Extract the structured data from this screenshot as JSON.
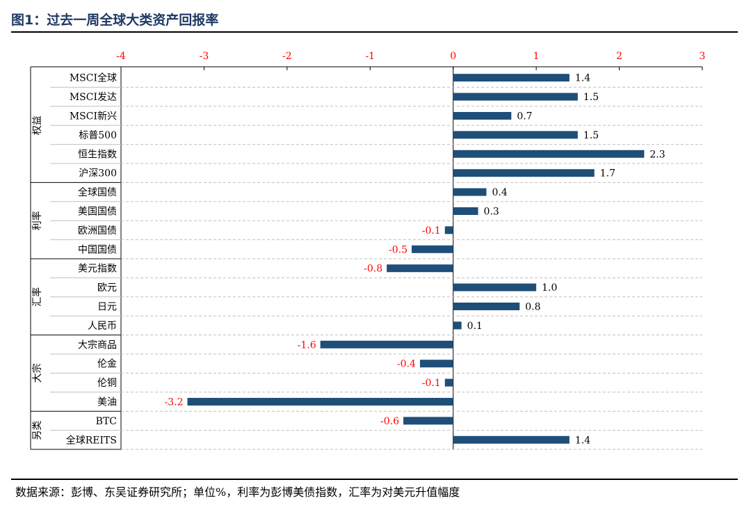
{
  "title": "图1：过去一周全球大类资产回报率",
  "source": "数据来源：彭博、东吴证券研究所；单位%，利率为彭博美债指数，汇率为对美元升值幅度",
  "colors": {
    "bar": "#1f4e79",
    "negative_label": "#ff0000",
    "positive_label": "#000000",
    "tick": "#ff0000"
  },
  "chart_data": {
    "type": "bar",
    "orientation": "horizontal",
    "xlim": [
      -4,
      3
    ],
    "xticks": [
      -4,
      -3,
      -2,
      -1,
      0,
      1,
      2,
      3
    ],
    "grid": true,
    "groups": [
      {
        "name": "权益",
        "categories": [
          "MSCI全球",
          "MSCI发达",
          "MSCI新兴",
          "标普500",
          "恒生指数",
          "沪深300"
        ],
        "values": [
          1.4,
          1.5,
          0.7,
          1.5,
          2.3,
          1.7
        ]
      },
      {
        "name": "利率",
        "categories": [
          "全球国债",
          "美国国债",
          "欧洲国债",
          "中国国债"
        ],
        "values": [
          0.4,
          0.3,
          -0.1,
          -0.5
        ]
      },
      {
        "name": "汇率",
        "categories": [
          "美元指数",
          "欧元",
          "日元",
          "人民币"
        ],
        "values": [
          -0.8,
          1.0,
          0.8,
          0.1
        ]
      },
      {
        "name": "大宗",
        "categories": [
          "大宗商品",
          "伦金",
          "伦铜",
          "美油"
        ],
        "values": [
          -1.6,
          -0.4,
          -0.1,
          -3.2
        ]
      },
      {
        "name": "另类",
        "categories": [
          "BTC",
          "全球REITS"
        ],
        "values": [
          -0.6,
          1.4
        ]
      }
    ]
  }
}
